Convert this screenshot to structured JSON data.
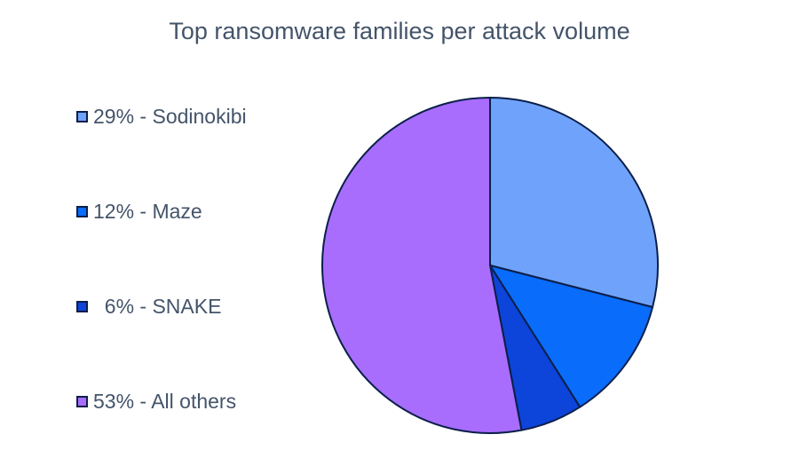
{
  "chart_data": {
    "type": "pie",
    "title": "Top ransomware families per attack volume",
    "legend_position": "left",
    "slices": [
      {
        "label": "Sodinokibi",
        "value": 29,
        "legend_text": "29% - Sodinokibi",
        "color": "#6fa3fb"
      },
      {
        "label": "Maze",
        "value": 12,
        "legend_text": "12% - Maze",
        "color": "#0a6cfb"
      },
      {
        "label": "SNAKE",
        "value": 6,
        "legend_text": "  6% - SNAKE",
        "color": "#0d44d9"
      },
      {
        "label": "All others",
        "value": 53,
        "legend_text": "53% - All others",
        "color": "#a86dfd"
      }
    ],
    "slice_outline_color": "#0c1f4a"
  }
}
